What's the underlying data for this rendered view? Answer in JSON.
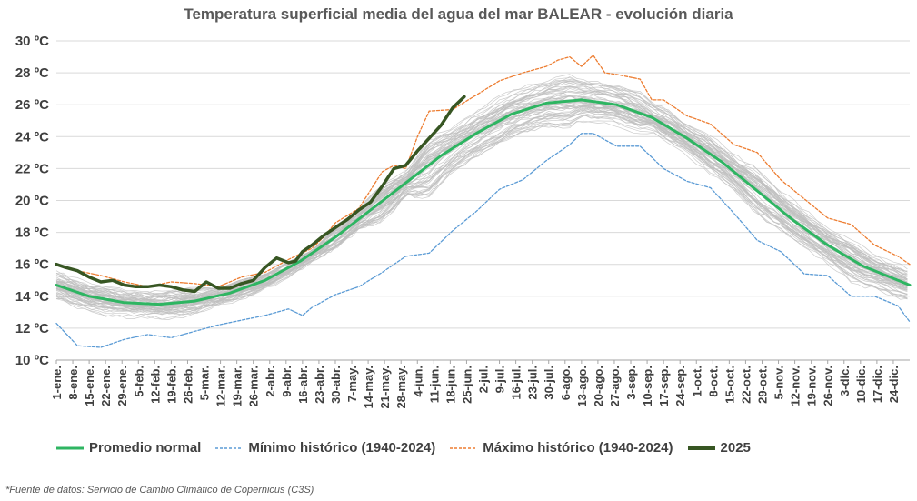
{
  "chart_data": {
    "type": "line",
    "title": "Temperatura superficial media del agua del mar BALEAR - evolución diaria",
    "ylim": [
      10,
      30
    ],
    "y_ticks": [
      "10 ºC",
      "12 ºC",
      "14 ºC",
      "16 ºC",
      "18 ºC",
      "20 ºC",
      "22 ºC",
      "24 ºC",
      "26 ºC",
      "28 ºC",
      "30 ºC"
    ],
    "x_tick_labels": [
      "1-ene.",
      "8-ene.",
      "15-ene.",
      "22-ene.",
      "29-ene.",
      "5-feb.",
      "12-feb.",
      "19-feb.",
      "26-feb.",
      "5-mar.",
      "12-mar.",
      "19-mar.",
      "26-mar.",
      "2-abr.",
      "9-abr.",
      "16-abr.",
      "23-abr.",
      "30-abr.",
      "7-may.",
      "14-may.",
      "21-may.",
      "28-may.",
      "4-jun.",
      "11-jun.",
      "18-jun.",
      "25-jun.",
      "2-jul.",
      "9-jul.",
      "16-jul.",
      "23-jul.",
      "30-jul.",
      "6-ago.",
      "13-ago.",
      "20-ago.",
      "27-ago.",
      "3-sep.",
      "10-sep.",
      "17-sep.",
      "24-sep.",
      "1-oct.",
      "8-oct.",
      "15-oct.",
      "22-oct.",
      "29-oct.",
      "5-nov.",
      "12-nov.",
      "19-nov.",
      "26-nov.",
      "3-dic.",
      "10-dic.",
      "17-dic.",
      "24-dic."
    ],
    "grid": true,
    "legend_position": "bottom",
    "series": [
      {
        "name": "Promedio normal",
        "color": "#2eb562",
        "style": "solid",
        "x": [
          1,
          15,
          30,
          45,
          60,
          75,
          90,
          105,
          120,
          135,
          150,
          165,
          180,
          195,
          210,
          225,
          240,
          255,
          270,
          285,
          300,
          315,
          330,
          345,
          365
        ],
        "values": [
          14.7,
          14.0,
          13.6,
          13.5,
          13.7,
          14.2,
          15.0,
          16.2,
          17.7,
          19.4,
          21.1,
          22.8,
          24.2,
          25.4,
          26.1,
          26.3,
          26.0,
          25.2,
          23.9,
          22.4,
          20.6,
          18.8,
          17.2,
          15.9,
          14.7
        ]
      },
      {
        "name": "Mínimo histórico (1940-2024)",
        "color": "#5b9bd5",
        "style": "dashed",
        "x": [
          1,
          10,
          20,
          30,
          40,
          50,
          60,
          70,
          80,
          90,
          100,
          106,
          110,
          120,
          130,
          140,
          150,
          160,
          170,
          180,
          190,
          200,
          210,
          220,
          225,
          230,
          240,
          250,
          260,
          270,
          280,
          290,
          300,
          310,
          320,
          330,
          340,
          350,
          360,
          365
        ],
        "values": [
          12.3,
          10.9,
          10.8,
          11.3,
          11.6,
          11.4,
          11.8,
          12.2,
          12.5,
          12.8,
          13.2,
          12.8,
          13.3,
          14.1,
          14.6,
          15.5,
          16.5,
          16.7,
          18.1,
          19.3,
          20.7,
          21.3,
          22.5,
          23.5,
          24.2,
          24.2,
          23.4,
          23.4,
          22.0,
          21.2,
          20.8,
          19.2,
          17.5,
          16.8,
          15.4,
          15.3,
          14.0,
          14.0,
          13.4,
          12.4
        ]
      },
      {
        "name": "Máximo histórico (1940-2024)",
        "color": "#ed7d31",
        "style": "dashed",
        "x": [
          1,
          10,
          20,
          30,
          40,
          50,
          60,
          70,
          80,
          90,
          100,
          110,
          115,
          120,
          130,
          140,
          145,
          150,
          155,
          160,
          170,
          180,
          190,
          200,
          210,
          215,
          220,
          225,
          230,
          235,
          240,
          250,
          255,
          260,
          270,
          280,
          290,
          300,
          310,
          320,
          330,
          340,
          350,
          360,
          365
        ],
        "values": [
          16.0,
          15.6,
          15.3,
          14.9,
          14.6,
          14.9,
          14.8,
          14.6,
          15.2,
          15.5,
          16.3,
          17.0,
          17.7,
          18.6,
          19.5,
          21.8,
          22.2,
          22.0,
          24.0,
          25.6,
          25.7,
          26.6,
          27.5,
          28.0,
          28.4,
          28.8,
          29.0,
          28.4,
          29.1,
          28.0,
          27.9,
          27.6,
          26.3,
          26.3,
          25.3,
          24.8,
          23.5,
          23.0,
          21.3,
          20.1,
          18.9,
          18.5,
          17.2,
          16.5,
          16.0
        ]
      },
      {
        "name": "2025",
        "color": "#375623",
        "style": "solid",
        "x": [
          1,
          5,
          10,
          15,
          20,
          25,
          30,
          35,
          40,
          45,
          50,
          55,
          60,
          65,
          70,
          75,
          80,
          85,
          90,
          95,
          100,
          103,
          106,
          110,
          115,
          120,
          125,
          130,
          135,
          140,
          145,
          150,
          155,
          160,
          165,
          170,
          175
        ],
        "values": [
          16.0,
          15.8,
          15.6,
          15.2,
          14.9,
          15.0,
          14.7,
          14.6,
          14.6,
          14.7,
          14.6,
          14.4,
          14.3,
          14.9,
          14.5,
          14.5,
          14.8,
          15.0,
          15.8,
          16.4,
          16.1,
          16.2,
          16.8,
          17.2,
          17.8,
          18.3,
          18.8,
          19.4,
          19.9,
          20.9,
          22.0,
          22.2,
          23.1,
          23.9,
          24.7,
          25.8,
          26.5
        ]
      }
    ],
    "background_series_color": "#bfbfbf",
    "background_series_note": "años individuales 1940-2024 (líneas grises)"
  },
  "legend": [
    {
      "label": "Promedio normal"
    },
    {
      "label": "Mínimo histórico (1940-2024)"
    },
    {
      "label": "Máximo histórico (1940-2024)"
    },
    {
      "label": "2025"
    }
  ],
  "source_note": "*Fuente de datos: Servicio de Cambio Climático de Copernicus (C3S)"
}
